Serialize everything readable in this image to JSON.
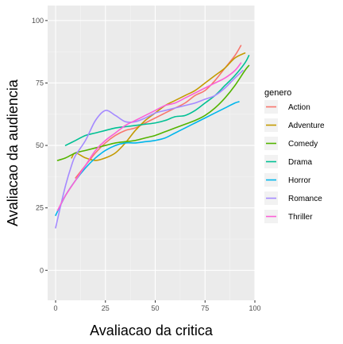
{
  "chart_data": {
    "type": "line",
    "xlabel": "Avaliacao da critica",
    "ylabel": "Avaliacao da audiencia",
    "xlim": [
      -4,
      100
    ],
    "ylim": [
      -12,
      106
    ],
    "x_ticks": [
      0,
      25,
      50,
      75,
      100
    ],
    "y_ticks": [
      0,
      25,
      50,
      75,
      100
    ],
    "grid": true,
    "legend": {
      "title": "genero",
      "placement": "right"
    },
    "series": [
      {
        "name": "Action",
        "color": "#F8766D",
        "x": [
          10,
          15,
          20,
          25,
          30,
          35,
          40,
          45,
          50,
          55,
          60,
          65,
          70,
          75,
          80,
          85,
          90,
          93
        ],
        "y": [
          37,
          42,
          47,
          51,
          54,
          56,
          57,
          59,
          61,
          63,
          65,
          67,
          70,
          72,
          76,
          81,
          86,
          90
        ]
      },
      {
        "name": "Adventure",
        "color": "#C49A00",
        "x": [
          8,
          10,
          15,
          20,
          25,
          30,
          35,
          40,
          45,
          50,
          55,
          60,
          65,
          70,
          75,
          80,
          85,
          90,
          95
        ],
        "y": [
          45,
          47,
          45,
          44,
          45,
          47,
          51,
          56,
          60,
          63,
          66,
          68,
          70,
          72,
          75,
          78,
          81,
          85,
          87
        ]
      },
      {
        "name": "Comedy",
        "color": "#53B400",
        "x": [
          1,
          5,
          10,
          15,
          20,
          25,
          30,
          35,
          40,
          45,
          50,
          55,
          60,
          65,
          70,
          75,
          80,
          85,
          90,
          95,
          97
        ],
        "y": [
          44,
          45,
          47,
          48,
          49,
          50,
          51,
          51.5,
          52,
          53,
          54,
          55.5,
          57,
          58.5,
          60,
          62,
          65,
          69,
          74,
          80,
          82
        ]
      },
      {
        "name": "Drama",
        "color": "#00C094",
        "x": [
          5,
          10,
          15,
          20,
          25,
          30,
          35,
          40,
          45,
          50,
          55,
          60,
          65,
          70,
          75,
          80,
          85,
          90,
          95,
          97
        ],
        "y": [
          50,
          52,
          54,
          55,
          56,
          57,
          57.5,
          58,
          58.5,
          59,
          60,
          61.5,
          62,
          64,
          67,
          70,
          74,
          78,
          83,
          86
        ]
      },
      {
        "name": "Horror",
        "color": "#00B6EB",
        "x": [
          0,
          5,
          10,
          15,
          20,
          25,
          30,
          35,
          40,
          45,
          50,
          55,
          60,
          65,
          70,
          75,
          80,
          85,
          90,
          92
        ],
        "y": [
          22,
          30,
          36,
          41,
          45,
          48,
          50,
          51,
          51,
          51.5,
          52,
          53,
          55,
          57,
          59,
          61,
          63,
          65,
          67,
          67.5
        ]
      },
      {
        "name": "Romance",
        "color": "#A58AFF",
        "x": [
          0,
          2,
          5,
          8,
          10,
          15,
          20,
          25,
          30,
          35,
          40,
          45,
          50,
          55,
          60,
          65,
          70,
          75,
          80,
          85,
          90,
          94
        ],
        "y": [
          17,
          24,
          34,
          42,
          46,
          52,
          60,
          64,
          62,
          59.5,
          59.5,
          61,
          63,
          64,
          65,
          66,
          67,
          68.5,
          70,
          73,
          77,
          80
        ]
      },
      {
        "name": "Thriller",
        "color": "#FB61D7",
        "x": [
          1,
          5,
          10,
          15,
          20,
          25,
          30,
          35,
          40,
          45,
          50,
          55,
          60,
          65,
          70,
          75,
          80,
          85,
          90,
          93
        ],
        "y": [
          24,
          30,
          36,
          42,
          48,
          52,
          55,
          58,
          60,
          62,
          64,
          66,
          67,
          69,
          71,
          73,
          75,
          77,
          80,
          83
        ]
      }
    ]
  }
}
